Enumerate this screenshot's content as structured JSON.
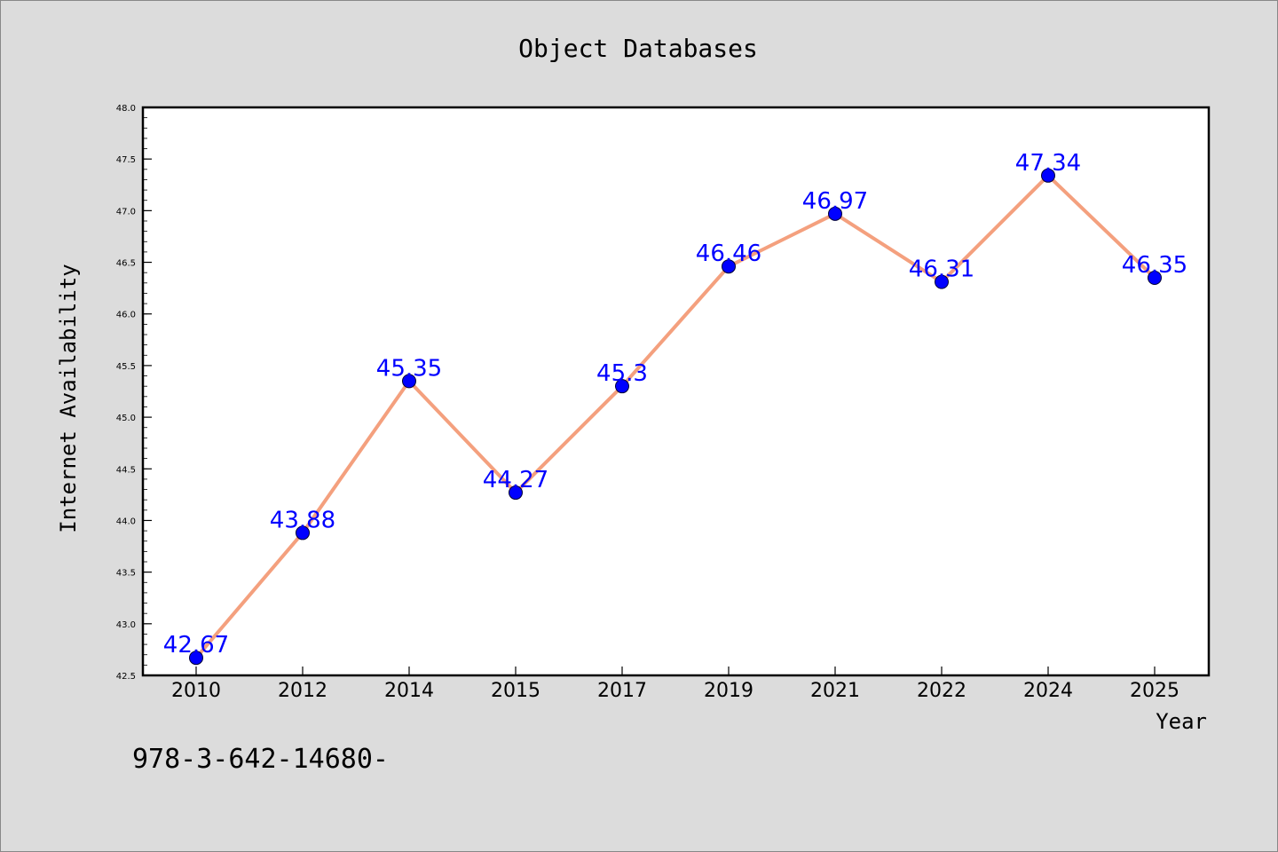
{
  "chart_data": {
    "type": "line",
    "title": "Object Databases",
    "xlabel": "Year",
    "ylabel": "Internet Availability",
    "categories": [
      "2010",
      "2012",
      "2014",
      "2015",
      "2017",
      "2019",
      "2021",
      "2022",
      "2024",
      "2025"
    ],
    "values": [
      42.67,
      43.88,
      45.35,
      44.27,
      45.3,
      46.46,
      46.97,
      46.31,
      47.34,
      46.35
    ],
    "data_labels": [
      "42.67",
      "43.88",
      "45.35",
      "44.27",
      "45.3",
      "46.46",
      "46.97",
      "46.31",
      "47.34",
      "46.35"
    ],
    "ylim": [
      42.5,
      48.0
    ],
    "yticks": [
      "42.5",
      "43.0",
      "43.5",
      "44.0",
      "44.5",
      "45.0",
      "45.5",
      "46.0",
      "46.5",
      "47.0",
      "47.5",
      "48.0"
    ],
    "grid": false,
    "colors": {
      "line": "#f4a07e",
      "marker": "#0000ff",
      "label": "#0000ff",
      "plot_background": "#ffffff",
      "figure_background": "#dcdcdc"
    }
  },
  "footer_text": "978-3-642-14680-"
}
